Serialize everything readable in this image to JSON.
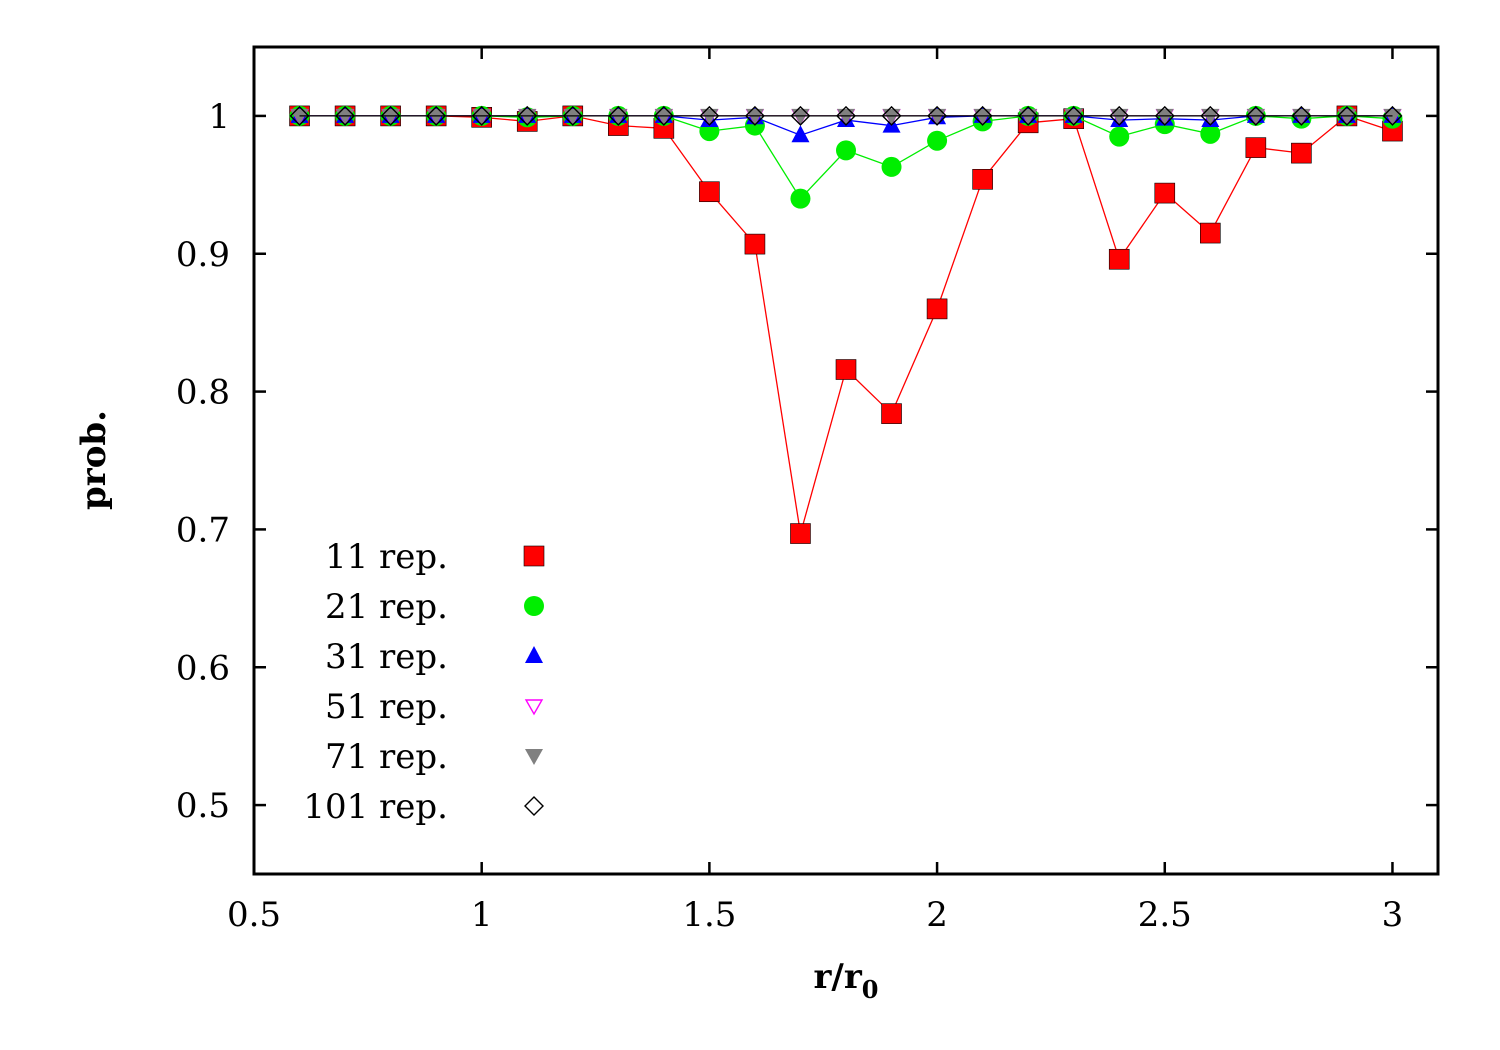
{
  "chart_data": {
    "type": "scatter",
    "title": "",
    "xlabel": "r/r",
    "xlabel_sub": "0",
    "ylabel": "prob.",
    "xlim": [
      0.5,
      3.1
    ],
    "ylim": [
      0.45,
      1.05
    ],
    "xticks": [
      0.5,
      1,
      1.5,
      2,
      2.5,
      3
    ],
    "yticks": [
      0.5,
      0.6,
      0.7,
      0.8,
      0.9,
      1
    ],
    "xtick_labels": [
      "0.5",
      "1",
      "1.5",
      "2",
      "2.5",
      "3"
    ],
    "ytick_labels": [
      "0.5",
      "0.6",
      "0.7",
      "0.8",
      "0.9",
      "1"
    ],
    "grid": false,
    "legend_position": "lower-left",
    "x": [
      0.6,
      0.7,
      0.8,
      0.9,
      1.0,
      1.1,
      1.2,
      1.3,
      1.4,
      1.5,
      1.6,
      1.7,
      1.8,
      1.9,
      2.0,
      2.1,
      2.2,
      2.3,
      2.4,
      2.5,
      2.6,
      2.7,
      2.8,
      2.9,
      3.0
    ],
    "series": [
      {
        "name": "11 rep.",
        "marker": "filled-square",
        "color": "#ff0000",
        "values": [
          1.0,
          1.0,
          1.0,
          1.0,
          0.999,
          0.996,
          1.0,
          0.993,
          0.991,
          0.945,
          0.907,
          0.697,
          0.816,
          0.784,
          0.86,
          0.954,
          0.995,
          0.998,
          0.896,
          0.944,
          0.915,
          0.977,
          0.973,
          1.0,
          0.989
        ]
      },
      {
        "name": "21 rep.",
        "marker": "filled-circle",
        "color": "#00ee00",
        "values": [
          1.0,
          1.0,
          1.0,
          1.0,
          1.0,
          0.999,
          1.0,
          1.0,
          1.0,
          0.989,
          0.993,
          0.94,
          0.975,
          0.963,
          0.982,
          0.996,
          1.0,
          1.0,
          0.985,
          0.994,
          0.987,
          1.0,
          0.998,
          1.0,
          0.998
        ]
      },
      {
        "name": "31 rep.",
        "marker": "filled-triangle-up",
        "color": "#0000ff",
        "values": [
          1.0,
          1.0,
          1.0,
          1.0,
          1.0,
          1.0,
          1.0,
          1.0,
          1.0,
          0.997,
          0.999,
          0.986,
          0.997,
          0.993,
          0.999,
          1.0,
          1.0,
          1.0,
          0.997,
          0.998,
          0.997,
          1.0,
          1.0,
          1.0,
          1.0
        ]
      },
      {
        "name": "51 rep.",
        "marker": "open-triangle-down",
        "color": "#ff00ff",
        "values": [
          1.0,
          1.0,
          1.0,
          1.0,
          1.0,
          1.0,
          1.0,
          1.0,
          1.0,
          1.0,
          1.0,
          1.0,
          1.0,
          1.0,
          1.0,
          1.0,
          1.0,
          1.0,
          1.0,
          1.0,
          1.0,
          1.0,
          1.0,
          1.0,
          1.0
        ]
      },
      {
        "name": "71 rep.",
        "marker": "filled-triangle-down",
        "color": "#808080",
        "values": [
          1.0,
          1.0,
          1.0,
          1.0,
          1.0,
          1.0,
          1.0,
          1.0,
          1.0,
          1.0,
          1.0,
          1.0,
          1.0,
          1.0,
          1.0,
          1.0,
          1.0,
          1.0,
          1.0,
          1.0,
          1.0,
          1.0,
          1.0,
          1.0,
          1.0
        ]
      },
      {
        "name": "101 rep.",
        "marker": "open-diamond",
        "color": "#000000",
        "values": [
          1.0,
          1.0,
          1.0,
          1.0,
          1.0,
          1.0,
          1.0,
          1.0,
          1.0,
          1.0,
          1.0,
          1.0,
          1.0,
          1.0,
          1.0,
          1.0,
          1.0,
          1.0,
          1.0,
          1.0,
          1.0,
          1.0,
          1.0,
          1.0,
          1.0
        ]
      }
    ]
  }
}
